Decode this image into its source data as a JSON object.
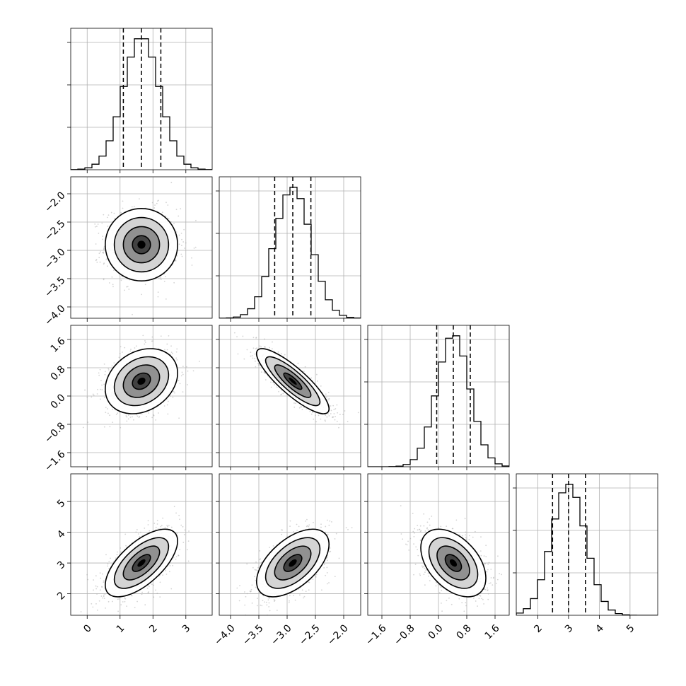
{
  "chart_data": {
    "type": "corner",
    "grid": true,
    "params": [
      {
        "mean": 1.65,
        "sd": 0.55,
        "lim": [
          -0.5,
          3.8
        ],
        "ticks": [
          0,
          1,
          2,
          3
        ],
        "tick_labels": [
          "0",
          "1",
          "2",
          "3"
        ],
        "quantiles": [
          1.1,
          1.65,
          2.24
        ]
      },
      {
        "mean": -2.9,
        "sd": 0.32,
        "lim": [
          -4.2,
          -1.7
        ],
        "ticks": [
          -4.0,
          -3.5,
          -3.0,
          -2.5,
          -2.0
        ],
        "tick_labels": [
          "−4.0",
          "−3.5",
          "−3.0",
          "−2.5",
          "−2.0"
        ],
        "quantiles": [
          -3.22,
          -2.9,
          -2.58
        ]
      },
      {
        "mean": 0.42,
        "sd": 0.46,
        "lim": [
          -2.0,
          2.0
        ],
        "ticks": [
          -1.6,
          -0.8,
          0.0,
          0.8,
          1.6
        ],
        "tick_labels": [
          "−1.6",
          "−0.8",
          "0.0",
          "0.8",
          "1.6"
        ],
        "quantiles": [
          -0.05,
          0.42,
          0.9
        ]
      },
      {
        "mean": 3.0,
        "sd": 0.55,
        "lim": [
          1.3,
          5.9
        ],
        "ticks": [
          2,
          3,
          4,
          5
        ],
        "tick_labels": [
          "2",
          "3",
          "4",
          "5"
        ],
        "quantiles": [
          2.48,
          3.0,
          3.55
        ]
      }
    ],
    "correlations": [
      [
        0,
        1,
        0.0
      ],
      [
        0,
        2,
        0.25
      ],
      [
        0,
        3,
        0.65
      ],
      [
        1,
        2,
        -0.85
      ],
      [
        1,
        3,
        0.55
      ],
      [
        2,
        3,
        -0.45
      ]
    ],
    "contour_levels_sigma": [
      0.5,
      1.0,
      1.5,
      2.0
    ],
    "colors": {
      "line": "#000000",
      "density": "#000000",
      "points": "#a0a0a0",
      "grid": "#b0b0b0"
    }
  }
}
